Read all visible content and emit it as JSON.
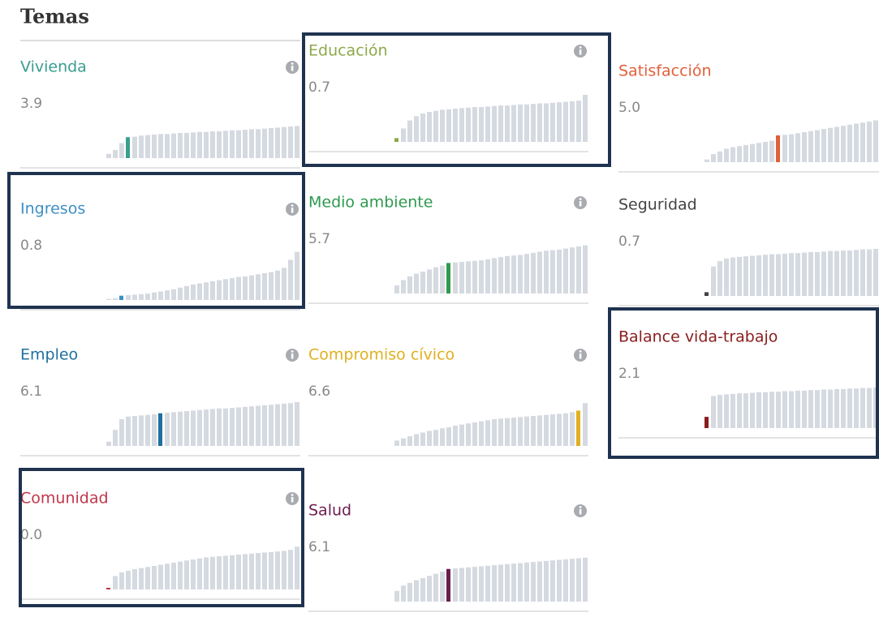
{
  "page": {
    "title": "Temas"
  },
  "topics": [
    {
      "name": "Vivienda",
      "score": "3.9",
      "color": "#3a9e8f",
      "highlight": 3,
      "bars": [
        0.8,
        1.5,
        2.8,
        3.9,
        4.0,
        4.2,
        4.3,
        4.4,
        4.5,
        4.5,
        4.6,
        4.7,
        4.7,
        4.8,
        4.9,
        4.9,
        5.0,
        5.0,
        5.1,
        5.2,
        5.2,
        5.3,
        5.4,
        5.4,
        5.5,
        5.6,
        5.7,
        5.8,
        5.9,
        6.0
      ]
    },
    {
      "name": "Educación",
      "score": "0.7",
      "color": "#8fa84a",
      "highlight": 0,
      "bars": [
        0.7,
        2.5,
        4.0,
        4.8,
        5.3,
        5.6,
        5.8,
        6.0,
        6.1,
        6.2,
        6.3,
        6.4,
        6.5,
        6.5,
        6.6,
        6.7,
        6.8,
        6.8,
        6.9,
        7.0,
        7.0,
        7.1,
        7.2,
        7.2,
        7.3,
        7.4,
        7.5,
        7.6,
        7.7,
        8.8
      ]
    },
    {
      "name": "Satisfacción",
      "score": "5.0",
      "color": "#e0603a",
      "highlight": 11,
      "bars": [
        0.5,
        1.5,
        2.0,
        2.5,
        2.8,
        3.0,
        3.2,
        3.4,
        3.6,
        3.8,
        4.0,
        5.0,
        5.1,
        5.2,
        5.4,
        5.6,
        5.8,
        6.0,
        6.2,
        6.4,
        6.6,
        6.8,
        7.0,
        7.2,
        7.4,
        7.6,
        7.8,
        8.0,
        8.1,
        8.2
      ]
    },
    {
      "name": "Ingresos",
      "score": "0.8",
      "color": "#3d8fc4",
      "highlight": 2,
      "bars": [
        0.2,
        0.3,
        0.8,
        0.9,
        1.0,
        1.1,
        1.2,
        1.4,
        1.6,
        1.8,
        2.0,
        2.3,
        2.6,
        2.9,
        3.1,
        3.3,
        3.5,
        3.7,
        3.9,
        4.1,
        4.3,
        4.4,
        4.6,
        4.8,
        5.0,
        5.2,
        5.5,
        6.0,
        7.5,
        9.0
      ]
    },
    {
      "name": "Medio ambiente",
      "score": "5.7",
      "color": "#2e9a4e",
      "highlight": 8,
      "bars": [
        1.5,
        2.5,
        3.2,
        3.7,
        4.1,
        4.5,
        4.9,
        5.2,
        5.7,
        5.8,
        5.9,
        6.0,
        6.1,
        6.2,
        6.4,
        6.6,
        6.8,
        7.0,
        7.1,
        7.2,
        7.4,
        7.6,
        7.8,
        8.0,
        8.1,
        8.2,
        8.4,
        8.6,
        8.8,
        9.0
      ]
    },
    {
      "name": "Seguridad",
      "score": "0.7",
      "color": "#444444",
      "highlight": 0,
      "bars": [
        0.7,
        5.5,
        6.5,
        7.0,
        7.2,
        7.3,
        7.4,
        7.5,
        7.6,
        7.7,
        7.8,
        7.8,
        7.9,
        8.0,
        8.0,
        8.1,
        8.2,
        8.2,
        8.3,
        8.4,
        8.4,
        8.5,
        8.5,
        8.6,
        8.7,
        8.7,
        8.8,
        8.9,
        8.9,
        9.0
      ]
    },
    {
      "name": "Empleo",
      "score": "6.1",
      "color": "#1f6f9f",
      "highlight": 8,
      "bars": [
        0.8,
        3.0,
        5.0,
        5.5,
        5.6,
        5.7,
        5.8,
        5.9,
        6.1,
        6.2,
        6.3,
        6.4,
        6.5,
        6.6,
        6.7,
        6.8,
        6.9,
        7.0,
        7.0,
        7.1,
        7.2,
        7.3,
        7.4,
        7.5,
        7.6,
        7.7,
        7.8,
        7.9,
        8.0,
        8.2
      ]
    },
    {
      "name": "Compromiso cívico",
      "score": "6.6",
      "color": "#e0b020",
      "highlight": 28,
      "bars": [
        1.0,
        1.4,
        1.8,
        2.2,
        2.5,
        2.8,
        3.0,
        3.3,
        3.5,
        3.8,
        4.0,
        4.2,
        4.4,
        4.6,
        4.8,
        5.0,
        5.1,
        5.2,
        5.3,
        5.4,
        5.5,
        5.6,
        5.7,
        5.8,
        5.9,
        6.0,
        6.1,
        6.3,
        6.6,
        8.0
      ]
    },
    {
      "name": "Balance vida-trabajo",
      "score": "2.1",
      "color": "#8a1d1d",
      "highlight": 0,
      "bars": [
        2.1,
        6.0,
        6.2,
        6.3,
        6.4,
        6.5,
        6.5,
        6.6,
        6.7,
        6.7,
        6.8,
        6.8,
        6.9,
        6.9,
        7.0,
        7.0,
        7.1,
        7.1,
        7.2,
        7.2,
        7.3,
        7.3,
        7.4,
        7.4,
        7.5,
        7.5,
        7.6,
        7.6,
        7.7,
        7.8
      ]
    },
    {
      "name": "Comunidad",
      "score": "0.0",
      "color": "#c0364a",
      "highlight": 0,
      "bars": [
        0.0,
        2.5,
        3.2,
        3.5,
        3.8,
        4.0,
        4.2,
        4.4,
        4.6,
        4.8,
        5.0,
        5.2,
        5.4,
        5.6,
        5.8,
        6.0,
        6.1,
        6.2,
        6.3,
        6.4,
        6.5,
        6.6,
        6.7,
        6.8,
        6.9,
        7.0,
        7.1,
        7.2,
        7.4,
        8.0
      ]
    },
    {
      "name": "Salud",
      "score": "6.1",
      "color": "#6b1d4f",
      "highlight": 8,
      "bars": [
        2.0,
        3.0,
        3.5,
        4.0,
        4.4,
        4.8,
        5.2,
        5.6,
        6.1,
        6.2,
        6.3,
        6.4,
        6.5,
        6.6,
        6.7,
        6.8,
        6.9,
        7.0,
        7.1,
        7.2,
        7.3,
        7.4,
        7.5,
        7.6,
        7.7,
        7.8,
        7.9,
        8.0,
        8.1,
        8.2
      ]
    }
  ]
}
